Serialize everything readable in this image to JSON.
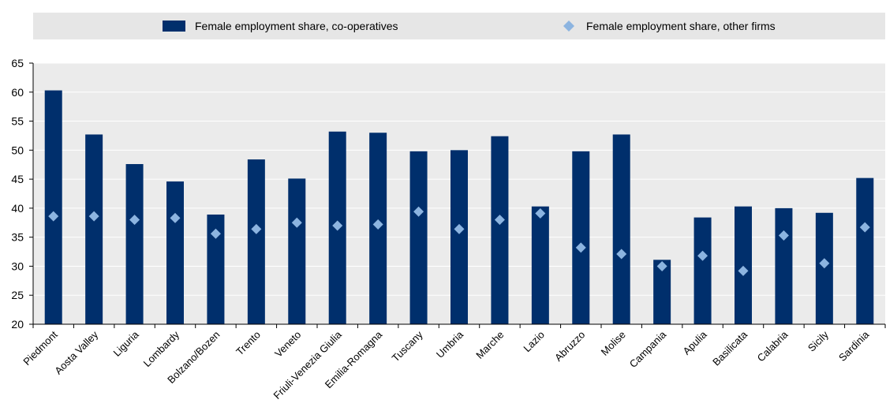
{
  "chart_data": {
    "type": "bar",
    "title": "",
    "xlabel": "",
    "ylabel": "",
    "ylim": [
      20,
      65
    ],
    "yticks": [
      20,
      25,
      30,
      35,
      40,
      45,
      50,
      55,
      60,
      65
    ],
    "grid": "horizontal",
    "legend_position": "top",
    "categories": [
      "Piedmont",
      "Aosta Valley",
      "Liguria",
      "Lombardy",
      "Bolzano/Bozen",
      "Trento",
      "Veneto",
      "Friuli-Venezia Giulia",
      "Emilia-Romagna",
      "Tuscany",
      "Umbria",
      "Marche",
      "Lazio",
      "Abruzzo",
      "Molise",
      "Campania",
      "Apulia",
      "Basilicata",
      "Calabria",
      "Sicily",
      "Sardinia"
    ],
    "series": [
      {
        "name": "Female employment share, co-operatives",
        "mark": "bar",
        "color": "#002f6c",
        "values": [
          60.3,
          52.7,
          47.6,
          44.6,
          38.9,
          48.4,
          45.1,
          53.2,
          53.0,
          49.8,
          50.0,
          52.4,
          40.3,
          49.8,
          52.7,
          31.1,
          38.4,
          40.3,
          40.0,
          39.2,
          45.2
        ]
      },
      {
        "name": "Female employment share,  other firms",
        "mark": "diamond",
        "color": "#8cb4e0",
        "values": [
          38.6,
          38.6,
          38.0,
          38.3,
          35.6,
          36.4,
          37.5,
          37.0,
          37.2,
          39.4,
          36.4,
          38.0,
          39.1,
          33.2,
          32.1,
          30.0,
          31.8,
          29.2,
          35.3,
          30.5,
          36.7
        ]
      }
    ]
  },
  "colors": {
    "plot_background": "#ebebeb",
    "legend_background": "#e6e6e6",
    "gridline": "#ffffff"
  }
}
